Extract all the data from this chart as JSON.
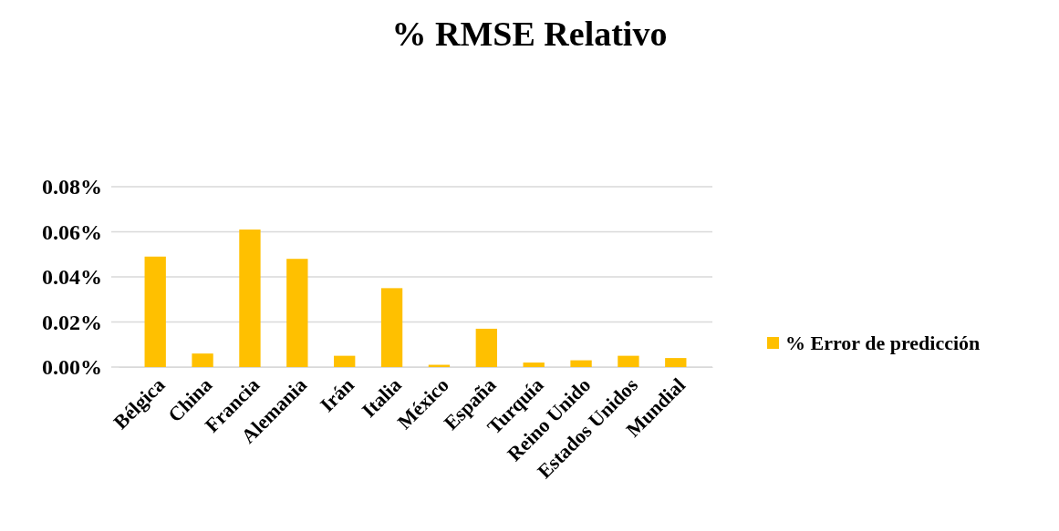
{
  "chart_data": {
    "type": "bar",
    "title": "% RMSE Relativo",
    "categories": [
      "Bélgica",
      "China",
      "Francia",
      "Alemania",
      "Irán",
      "Italia",
      "México",
      "España",
      "Turquía",
      "Reino Unido",
      "Estados Unidos",
      "Mundial"
    ],
    "series": [
      {
        "name": "% Error de predicción",
        "color": "#ffc000",
        "values": [
          0.049,
          0.006,
          0.061,
          0.048,
          0.005,
          0.035,
          0.001,
          0.017,
          0.002,
          0.003,
          0.005,
          0.004
        ]
      }
    ],
    "ylim": [
      0,
      0.08
    ],
    "yticks": [
      {
        "value": 0,
        "label": "0.00%"
      },
      {
        "value": 0.02,
        "label": "0.02%"
      },
      {
        "value": 0.04,
        "label": "0.04%"
      },
      {
        "value": 0.06,
        "label": "0.06%"
      },
      {
        "value": 0.08,
        "label": "0.08%"
      }
    ],
    "grid": "y",
    "legend": "right"
  }
}
